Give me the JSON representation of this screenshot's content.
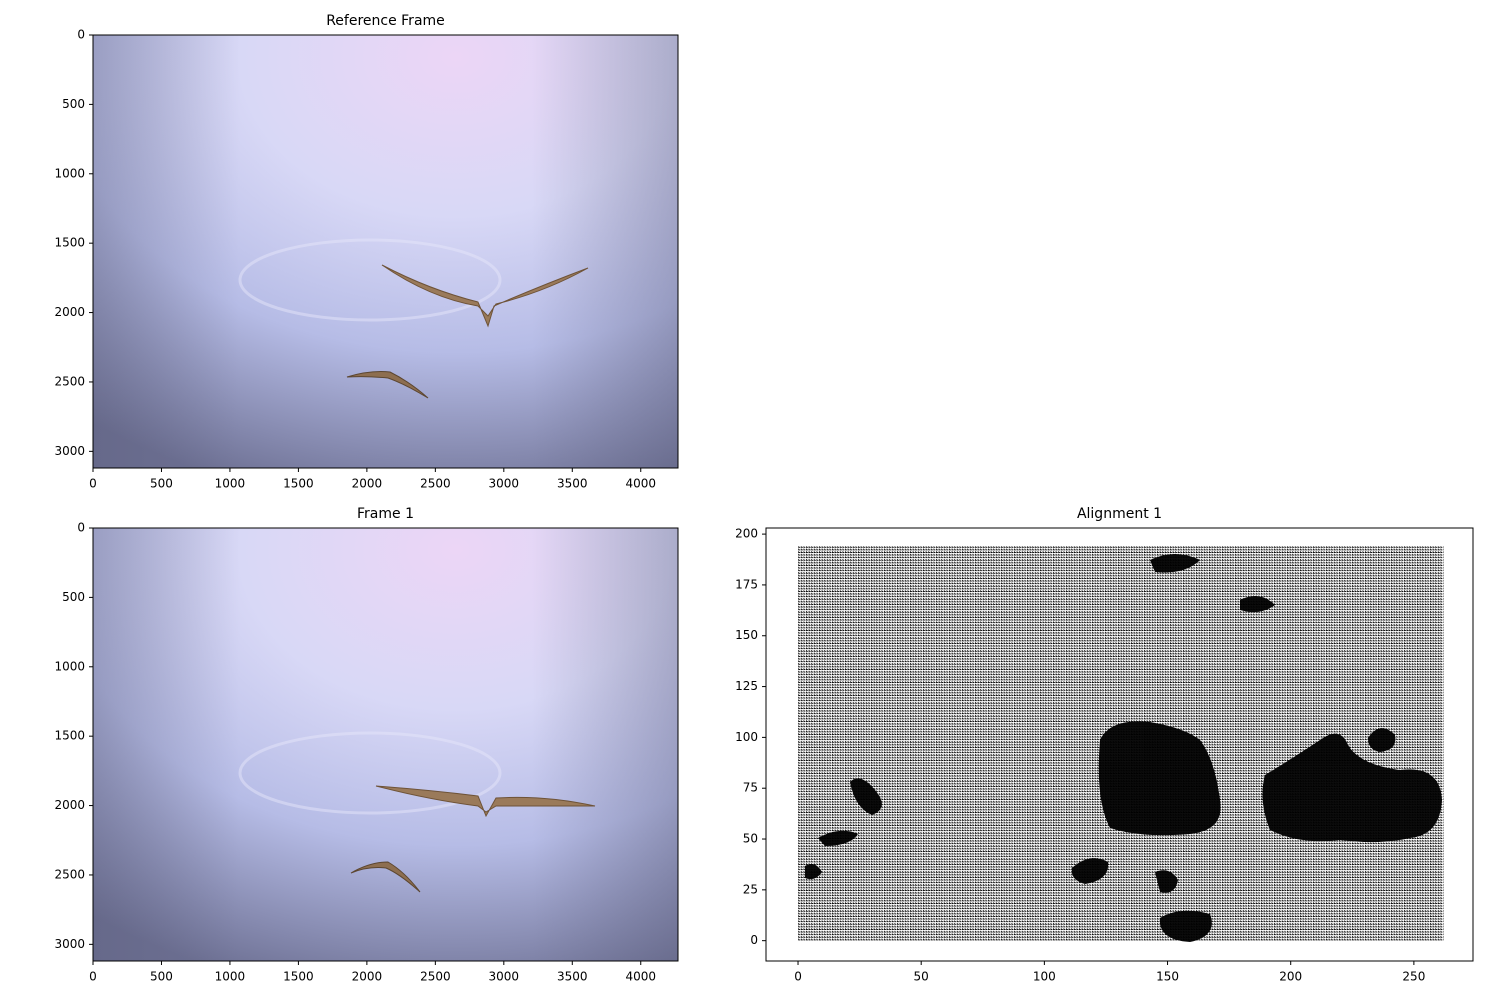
{
  "chart_data": [
    {
      "type": "image",
      "title": "Reference Frame",
      "xlim": [
        0,
        4272
      ],
      "ylim": [
        3120,
        0
      ],
      "xticks": [
        0,
        500,
        1000,
        1500,
        2000,
        2500,
        3000,
        3500,
        4000
      ],
      "yticks": [
        0,
        500,
        1000,
        1500,
        2000,
        2500,
        3000
      ]
    },
    {
      "type": "image",
      "title": "Frame 1",
      "xlim": [
        0,
        4272
      ],
      "ylim": [
        3120,
        0
      ],
      "xticks": [
        0,
        500,
        1000,
        1500,
        2000,
        2500,
        3000,
        3500,
        4000
      ],
      "yticks": [
        0,
        500,
        1000,
        1500,
        2000,
        2500,
        3000
      ]
    },
    {
      "type": "quiver",
      "title": "Alignment 1",
      "xlim": [
        -13,
        274
      ],
      "ylim": [
        -10,
        203
      ],
      "xrange": [
        0,
        262
      ],
      "yrange": [
        0,
        194
      ],
      "xticks": [
        0,
        50,
        100,
        150,
        200,
        250
      ],
      "yticks": [
        0,
        25,
        50,
        75,
        100,
        125,
        150,
        175,
        200
      ]
    }
  ]
}
